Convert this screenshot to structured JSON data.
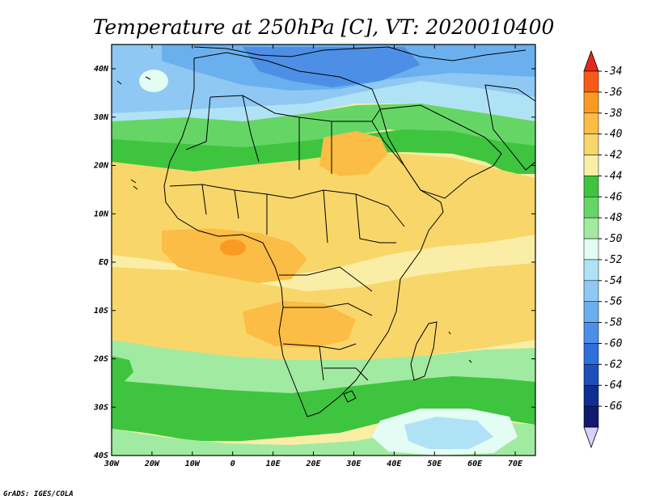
{
  "title": "Temperature at 250hPa [C], VT: 2020010400",
  "credit": "GrADS: IGES/COLA",
  "map": {
    "lon_labels": [
      "30W",
      "20W",
      "10W",
      "0",
      "10E",
      "20E",
      "30E",
      "40E",
      "50E",
      "60E",
      "70E"
    ],
    "lat_labels": [
      "40N",
      "30N",
      "20N",
      "10N",
      "EQ",
      "10S",
      "20S",
      "30S",
      "40S"
    ]
  },
  "colorbar": {
    "levels": [
      "-34",
      "-36",
      "-38",
      "-40",
      "-42",
      "-44",
      "-46",
      "-48",
      "-50",
      "-52",
      "-54",
      "-56",
      "-58",
      "-60",
      "-62",
      "-64",
      "-66"
    ],
    "colors": [
      "#e8271b",
      "#f65a18",
      "#fb9a23",
      "#fbbd45",
      "#f8d66a",
      "#faeea6",
      "#3fc43f",
      "#65d665",
      "#a1eaa1",
      "#e3fcf4",
      "#b0e2f6",
      "#8fc8f3",
      "#6ab0ef",
      "#4d8fe6",
      "#2f6fdb",
      "#1e4fb8",
      "#0f2e8f",
      "#101a6e",
      "#d5d2ff"
    ]
  },
  "colors": {
    "shade_-36": "#f65a18",
    "shade_-38": "#fb9a23",
    "shade_-40": "#fbbd45",
    "shade_-42": "#f8d66a",
    "shade_-44": "#faeea6",
    "shade_-46": "#3fc43f",
    "shade_-48": "#65d665",
    "shade_-50": "#a1eaa1",
    "shade_-52": "#e3fcf4",
    "shade_-54": "#b0e2f6",
    "shade_-56": "#8fc8f3",
    "shade_-58": "#6ab0ef",
    "shade_-60": "#4d8fe6"
  }
}
